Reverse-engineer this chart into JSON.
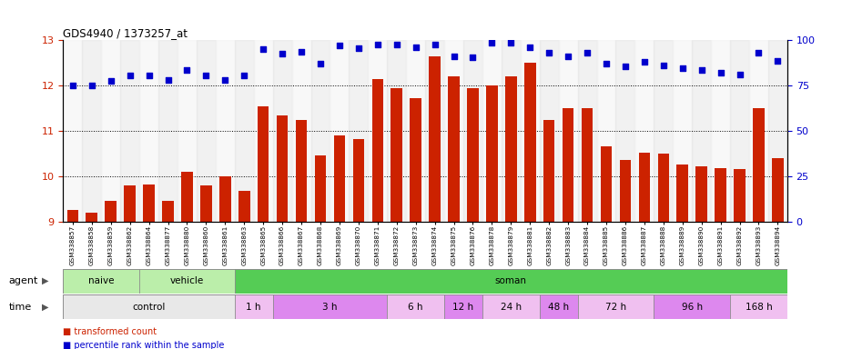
{
  "title": "GDS4940 / 1373257_at",
  "samples": [
    "GSM338857",
    "GSM338858",
    "GSM338859",
    "GSM338862",
    "GSM338864",
    "GSM338877",
    "GSM338880",
    "GSM338860",
    "GSM338861",
    "GSM338863",
    "GSM338865",
    "GSM338866",
    "GSM338867",
    "GSM338868",
    "GSM338869",
    "GSM338870",
    "GSM338871",
    "GSM338872",
    "GSM338873",
    "GSM338874",
    "GSM338875",
    "GSM338876",
    "GSM338878",
    "GSM338879",
    "GSM338881",
    "GSM338882",
    "GSM338883",
    "GSM338884",
    "GSM338885",
    "GSM338886",
    "GSM338887",
    "GSM338888",
    "GSM338889",
    "GSM338890",
    "GSM338891",
    "GSM338892",
    "GSM338893",
    "GSM338894"
  ],
  "bar_values": [
    9.25,
    9.2,
    9.45,
    9.8,
    9.82,
    9.45,
    10.1,
    9.8,
    10.0,
    9.67,
    11.55,
    11.35,
    11.25,
    10.45,
    10.9,
    10.82,
    12.15,
    11.95,
    11.72,
    12.65,
    12.2,
    11.95,
    12.0,
    12.2,
    12.5,
    11.25,
    11.5,
    11.5,
    10.65,
    10.35,
    10.52,
    10.5,
    10.26,
    10.22,
    10.18,
    10.15,
    11.5,
    10.4
  ],
  "percentile_values": [
    75.0,
    75.0,
    77.5,
    80.5,
    80.5,
    78.0,
    83.75,
    80.5,
    78.0,
    80.75,
    95.0,
    92.5,
    93.75,
    87.0,
    97.0,
    95.5,
    97.5,
    97.5,
    96.25,
    97.5,
    91.25,
    90.5,
    98.75,
    98.75,
    96.25,
    93.0,
    91.25,
    93.0,
    87.0,
    85.5,
    88.0,
    86.25,
    84.5,
    83.75,
    82.0,
    81.25,
    93.0,
    88.75
  ],
  "ylim_left": [
    9.0,
    13.0
  ],
  "yticks_left": [
    9,
    10,
    11,
    12,
    13
  ],
  "ylim_right": [
    0,
    100
  ],
  "yticks_right": [
    0,
    25,
    50,
    75,
    100
  ],
  "bar_color": "#cc2200",
  "dot_color": "#0000cc",
  "dot_marker": "s",
  "naive_color": "#bbeeaa",
  "vehicle_color": "#bbeeaa",
  "soman_color": "#55cc55",
  "control_color": "#e8e8e8",
  "time_color_light": "#f0c0f0",
  "time_color_dark": "#dd88ee",
  "left_axis_color": "#cc2200",
  "right_axis_color": "#0000cc",
  "agent_regions": [
    {
      "label": "naive",
      "start": 0,
      "end": 3,
      "color": "#bbeeaa"
    },
    {
      "label": "vehicle",
      "start": 4,
      "end": 8,
      "color": "#bbeeaa"
    },
    {
      "label": "soman",
      "start": 9,
      "end": 37,
      "color": "#55cc55"
    }
  ],
  "time_regions": [
    {
      "label": "control",
      "start": 0,
      "end": 8,
      "color": "#e8e8e8"
    },
    {
      "label": "1 h",
      "start": 9,
      "end": 10,
      "color": "#f0c0f0"
    },
    {
      "label": "3 h",
      "start": 11,
      "end": 16,
      "color": "#dd88ee"
    },
    {
      "label": "6 h",
      "start": 17,
      "end": 19,
      "color": "#f0c0f0"
    },
    {
      "label": "12 h",
      "start": 20,
      "end": 21,
      "color": "#dd88ee"
    },
    {
      "label": "24 h",
      "start": 22,
      "end": 24,
      "color": "#f0c0f0"
    },
    {
      "label": "48 h",
      "start": 25,
      "end": 26,
      "color": "#dd88ee"
    },
    {
      "label": "72 h",
      "start": 27,
      "end": 30,
      "color": "#f0c0f0"
    },
    {
      "label": "96 h",
      "start": 31,
      "end": 34,
      "color": "#dd88ee"
    },
    {
      "label": "168 h",
      "start": 35,
      "end": 37,
      "color": "#f0c0f0"
    }
  ],
  "legend_red_label": "transformed count",
  "legend_blue_label": "percentile rank within the sample",
  "agent_row_label": "agent",
  "time_row_label": "time"
}
